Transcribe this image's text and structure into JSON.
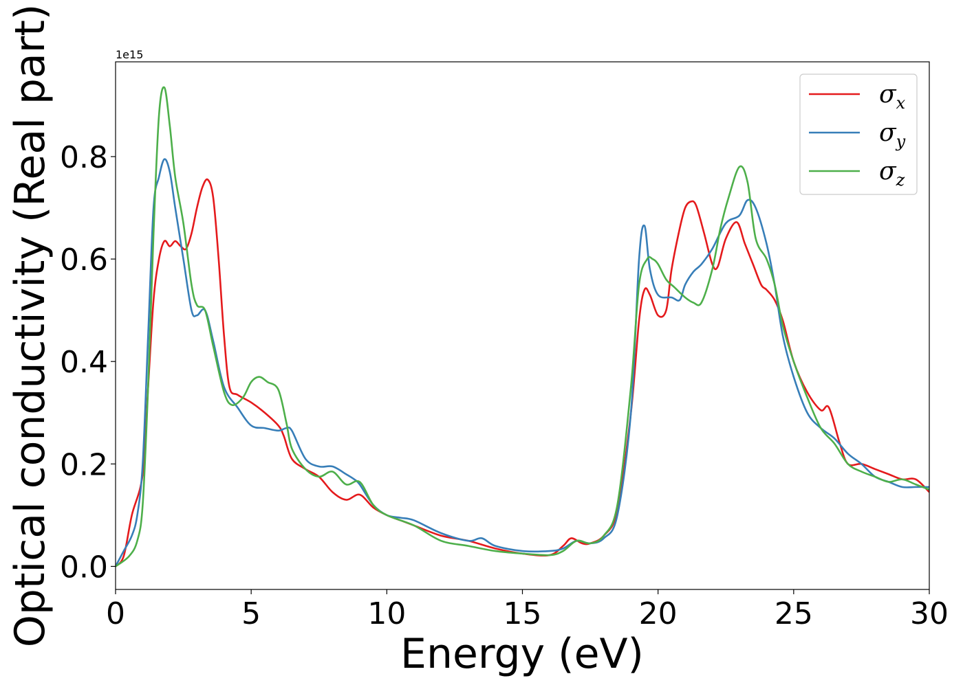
{
  "chart_data": {
    "type": "line",
    "xlabel": "Energy (eV)",
    "ylabel": "Optical conductivity (Real part)",
    "y_offset_label": "1e15",
    "xlim": [
      0,
      30
    ],
    "ylim": [
      -0.045,
      0.985
    ],
    "xticks": [
      0,
      5,
      10,
      15,
      20,
      25,
      30
    ],
    "xtick_labels": [
      "0",
      "5",
      "10",
      "15",
      "20",
      "25",
      "30"
    ],
    "yticks": [
      0.0,
      0.2,
      0.4,
      0.6,
      0.8
    ],
    "ytick_labels": [
      "0.0",
      "0.2",
      "0.4",
      "0.6",
      "0.8"
    ],
    "grid": false,
    "legend_position": "top-right",
    "series": [
      {
        "name": "σx",
        "symbol": "σ",
        "subscript": "x",
        "color": "#e41a1c",
        "x": [
          0,
          0.3,
          0.6,
          1.0,
          1.2,
          1.4,
          1.6,
          1.8,
          2.0,
          2.2,
          2.4,
          2.6,
          2.8,
          3.0,
          3.2,
          3.4,
          3.6,
          3.8,
          4.0,
          4.2,
          4.5,
          5.0,
          5.5,
          6.0,
          6.2,
          6.5,
          7.0,
          7.5,
          8.0,
          8.5,
          9.0,
          9.5,
          10.0,
          10.5,
          11.0,
          12.0,
          13.0,
          14.0,
          15.0,
          16.0,
          16.5,
          16.8,
          17.2,
          17.5,
          18.0,
          18.5,
          19.0,
          19.3,
          19.5,
          19.7,
          20.0,
          20.3,
          20.5,
          20.8,
          21.0,
          21.2,
          21.4,
          21.7,
          22.0,
          22.2,
          22.5,
          22.9,
          23.2,
          23.5,
          23.8,
          24.0,
          24.3,
          24.6,
          25.0,
          25.5,
          26.0,
          26.3,
          26.7,
          27.0,
          27.5,
          28.0,
          28.5,
          29.0,
          29.5,
          30.0
        ],
        "values": [
          0.0,
          0.02,
          0.1,
          0.18,
          0.35,
          0.52,
          0.6,
          0.635,
          0.625,
          0.635,
          0.625,
          0.62,
          0.65,
          0.7,
          0.74,
          0.755,
          0.72,
          0.6,
          0.45,
          0.35,
          0.335,
          0.32,
          0.3,
          0.275,
          0.255,
          0.21,
          0.19,
          0.175,
          0.145,
          0.13,
          0.14,
          0.115,
          0.1,
          0.09,
          0.08,
          0.06,
          0.05,
          0.035,
          0.025,
          0.022,
          0.04,
          0.055,
          0.045,
          0.045,
          0.06,
          0.11,
          0.3,
          0.48,
          0.54,
          0.53,
          0.49,
          0.5,
          0.58,
          0.66,
          0.7,
          0.712,
          0.705,
          0.65,
          0.59,
          0.585,
          0.64,
          0.672,
          0.63,
          0.59,
          0.55,
          0.54,
          0.52,
          0.48,
          0.4,
          0.34,
          0.305,
          0.31,
          0.24,
          0.2,
          0.2,
          0.19,
          0.18,
          0.17,
          0.17,
          0.145
        ]
      },
      {
        "name": "σy",
        "symbol": "σ",
        "subscript": "y",
        "color": "#377eb8",
        "x": [
          0,
          0.3,
          0.6,
          0.8,
          1.0,
          1.2,
          1.4,
          1.6,
          1.8,
          2.0,
          2.2,
          2.5,
          2.8,
          3.0,
          3.3,
          3.6,
          4.0,
          4.5,
          5.0,
          5.5,
          6.0,
          6.3,
          6.5,
          7.0,
          7.5,
          8.0,
          8.5,
          8.8,
          9.0,
          9.5,
          10.0,
          10.5,
          11.0,
          12.0,
          13.0,
          13.5,
          14.0,
          15.0,
          16.0,
          16.5,
          17.0,
          17.5,
          18.0,
          18.5,
          19.0,
          19.3,
          19.5,
          19.7,
          20.0,
          20.5,
          20.8,
          21.0,
          21.3,
          21.6,
          22.0,
          22.5,
          23.0,
          23.3,
          23.6,
          24.0,
          24.3,
          24.6,
          25.0,
          25.5,
          26.0,
          26.5,
          27.0,
          27.5,
          28.0,
          28.5,
          29.0,
          29.5,
          30.0
        ],
        "values": [
          0.0,
          0.03,
          0.06,
          0.1,
          0.2,
          0.45,
          0.7,
          0.76,
          0.795,
          0.77,
          0.7,
          0.6,
          0.5,
          0.49,
          0.5,
          0.44,
          0.35,
          0.31,
          0.275,
          0.27,
          0.265,
          0.27,
          0.265,
          0.21,
          0.195,
          0.195,
          0.18,
          0.17,
          0.16,
          0.12,
          0.1,
          0.095,
          0.09,
          0.065,
          0.05,
          0.055,
          0.04,
          0.03,
          0.03,
          0.035,
          0.05,
          0.045,
          0.055,
          0.1,
          0.3,
          0.6,
          0.665,
          0.58,
          0.53,
          0.525,
          0.52,
          0.55,
          0.575,
          0.59,
          0.62,
          0.67,
          0.685,
          0.715,
          0.7,
          0.63,
          0.55,
          0.45,
          0.37,
          0.3,
          0.27,
          0.25,
          0.22,
          0.2,
          0.175,
          0.165,
          0.155,
          0.155,
          0.155
        ]
      },
      {
        "name": "σz",
        "symbol": "σ",
        "subscript": "z",
        "color": "#4daf4a",
        "x": [
          0,
          0.5,
          0.8,
          1.0,
          1.2,
          1.4,
          1.6,
          1.8,
          2.0,
          2.2,
          2.5,
          2.8,
          3.0,
          3.3,
          3.6,
          4.0,
          4.3,
          4.7,
          5.0,
          5.3,
          5.6,
          6.0,
          6.3,
          6.5,
          7.0,
          7.5,
          8.0,
          8.5,
          9.0,
          9.5,
          10.0,
          11.0,
          12.0,
          13.0,
          14.0,
          15.0,
          16.0,
          16.5,
          17.0,
          17.5,
          18.0,
          18.5,
          19.0,
          19.3,
          19.6,
          19.8,
          20.0,
          20.3,
          20.6,
          21.0,
          21.3,
          21.6,
          22.0,
          22.3,
          22.6,
          23.0,
          23.3,
          23.6,
          24.0,
          24.3,
          24.6,
          25.0,
          25.5,
          26.0,
          26.5,
          27.0,
          27.5,
          28.0,
          28.5,
          29.0,
          29.5,
          30.0
        ],
        "values": [
          0.0,
          0.02,
          0.05,
          0.12,
          0.35,
          0.65,
          0.88,
          0.935,
          0.86,
          0.76,
          0.67,
          0.55,
          0.51,
          0.5,
          0.43,
          0.34,
          0.315,
          0.33,
          0.36,
          0.37,
          0.36,
          0.345,
          0.28,
          0.23,
          0.19,
          0.175,
          0.185,
          0.16,
          0.165,
          0.12,
          0.1,
          0.08,
          0.05,
          0.04,
          0.03,
          0.025,
          0.022,
          0.03,
          0.05,
          0.045,
          0.06,
          0.12,
          0.35,
          0.55,
          0.6,
          0.6,
          0.59,
          0.56,
          0.545,
          0.525,
          0.515,
          0.515,
          0.58,
          0.66,
          0.72,
          0.78,
          0.75,
          0.64,
          0.6,
          0.55,
          0.47,
          0.4,
          0.33,
          0.27,
          0.24,
          0.2,
          0.185,
          0.175,
          0.165,
          0.17,
          0.16,
          0.15
        ]
      }
    ]
  }
}
